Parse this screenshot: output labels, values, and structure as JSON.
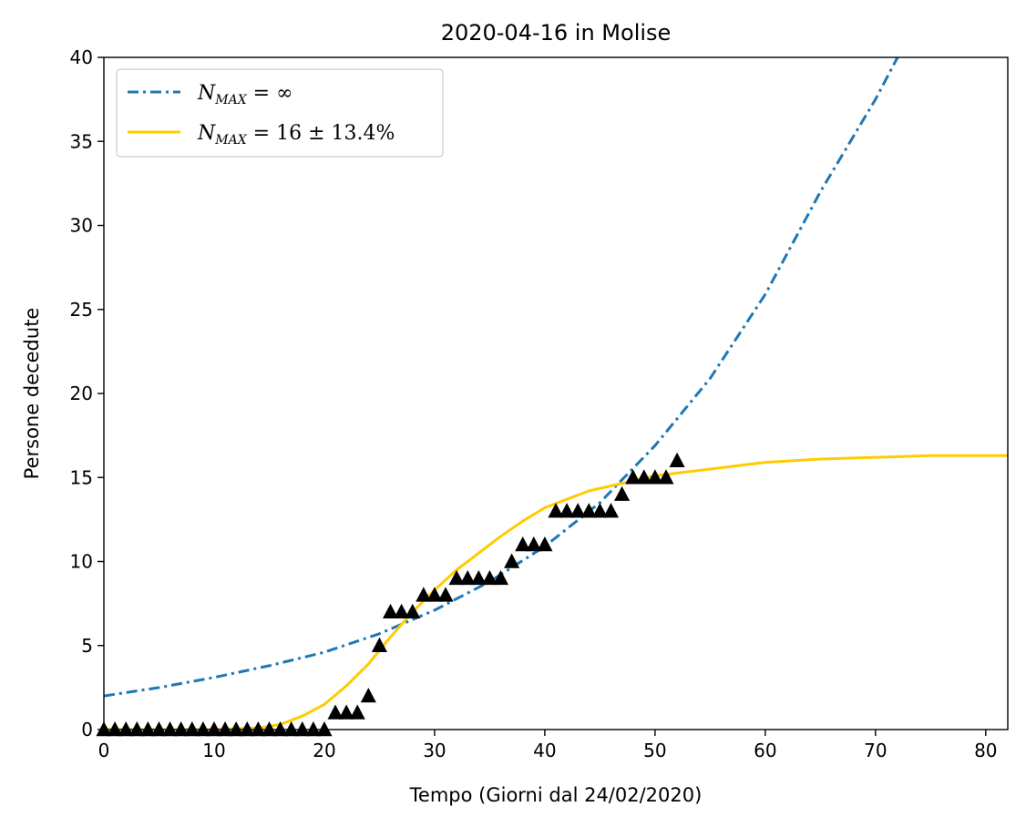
{
  "chart_data": {
    "type": "line",
    "title": "2020-04-16 in Molise",
    "xlabel": "Tempo (Giorni dal 24/02/2020)",
    "ylabel": "Persone decedute",
    "xlim": [
      0,
      82
    ],
    "ylim": [
      0,
      40
    ],
    "xticks": [
      "0",
      "10",
      "20",
      "30",
      "40",
      "50",
      "60",
      "70",
      "80"
    ],
    "yticks": [
      "0",
      "5",
      "10",
      "15",
      "20",
      "25",
      "30",
      "35",
      "40"
    ],
    "legend_position": "top-left",
    "grid": false,
    "series": [
      {
        "name": "N_MAX = ∞",
        "kind": "line",
        "style": "dashdot",
        "color": "#1f77b4",
        "x": [
          0,
          5,
          10,
          15,
          20,
          25,
          30,
          35,
          40,
          45,
          50,
          55,
          60,
          65,
          70,
          72
        ],
        "y": [
          2.0,
          2.5,
          3.1,
          3.8,
          4.6,
          5.7,
          7.1,
          8.8,
          10.9,
          13.5,
          16.9,
          20.9,
          25.9,
          32.0,
          37.5,
          40.0
        ]
      },
      {
        "name": "N_MAX = 16 ± 13.4%",
        "kind": "line",
        "style": "solid",
        "color": "#ffcc00",
        "x": [
          0,
          10,
          14,
          16,
          18,
          20,
          22,
          24,
          26,
          28,
          30,
          32,
          34,
          36,
          38,
          40,
          42,
          44,
          46,
          48,
          50,
          55,
          60,
          65,
          70,
          75,
          80,
          82
        ],
        "y": [
          0.0,
          0.0,
          0.1,
          0.3,
          0.8,
          1.5,
          2.6,
          3.9,
          5.5,
          7.0,
          8.3,
          9.5,
          10.5,
          11.5,
          12.4,
          13.2,
          13.7,
          14.2,
          14.5,
          14.8,
          15.1,
          15.5,
          15.9,
          16.1,
          16.2,
          16.3,
          16.3,
          16.3
        ]
      },
      {
        "name": "",
        "kind": "scatter",
        "marker": "triangle",
        "color": "#000000",
        "x": [
          0,
          1,
          2,
          3,
          4,
          5,
          6,
          7,
          8,
          9,
          10,
          11,
          12,
          13,
          14,
          15,
          16,
          17,
          18,
          19,
          20,
          21,
          22,
          23,
          24,
          25,
          26,
          27,
          28,
          29,
          30,
          31,
          32,
          33,
          34,
          35,
          36,
          37,
          38,
          39,
          40,
          41,
          42,
          43,
          44,
          45,
          46,
          47,
          48,
          49,
          50,
          51,
          52
        ],
        "y": [
          0,
          0,
          0,
          0,
          0,
          0,
          0,
          0,
          0,
          0,
          0,
          0,
          0,
          0,
          0,
          0,
          0,
          0,
          0,
          0,
          0,
          1,
          1,
          1,
          2,
          5,
          7,
          7,
          7,
          8,
          8,
          8,
          9,
          9,
          9,
          9,
          9,
          10,
          11,
          11,
          11,
          13,
          13,
          13,
          13,
          13,
          13,
          14,
          15,
          15,
          15,
          15,
          16
        ]
      }
    ]
  },
  "legend": {
    "label_1": "N",
    "sub_1": "MAX",
    "rest_1": " = ∞",
    "label_2": "N",
    "sub_2": "MAX",
    "rest_2": " = 16 ± 13.4%"
  }
}
